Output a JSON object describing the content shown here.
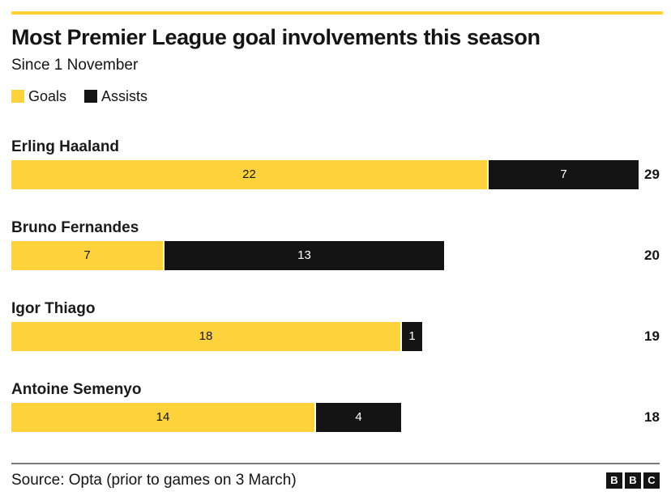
{
  "header": {
    "title": "Most Premier League goal involvements this season",
    "subtitle": "Since 1 November"
  },
  "legend": [
    {
      "label": "Goals",
      "color": "#FDD23A"
    },
    {
      "label": "Assists",
      "color": "#141414"
    }
  ],
  "chart_data": {
    "type": "bar",
    "orientation": "horizontal",
    "stacked": true,
    "title": "Most Premier League goal involvements this season",
    "subtitle": "Since 1 November",
    "categories": [
      "Erling Haaland",
      "Bruno Fernandes",
      "Igor Thiago",
      "Antoine Semenyo"
    ],
    "series": [
      {
        "name": "Goals",
        "color": "#FDD23A",
        "values": [
          22,
          7,
          18,
          14
        ]
      },
      {
        "name": "Assists",
        "color": "#141414",
        "values": [
          7,
          13,
          1,
          4
        ]
      }
    ],
    "totals": [
      29,
      20,
      19,
      18
    ],
    "xlim": [
      0,
      29
    ],
    "grid": false,
    "legend_position": "top",
    "value_labels": "inside",
    "total_labels": "right"
  },
  "footer": {
    "source": "Source: Opta (prior to games on 3 March)",
    "logo_letters": [
      "B",
      "B",
      "C"
    ]
  },
  "colors": {
    "accent_rule": "#FFD230",
    "goals": "#FDD23A",
    "assists": "#141414",
    "divider": "#7a7a7a",
    "background": "#ffffff"
  }
}
